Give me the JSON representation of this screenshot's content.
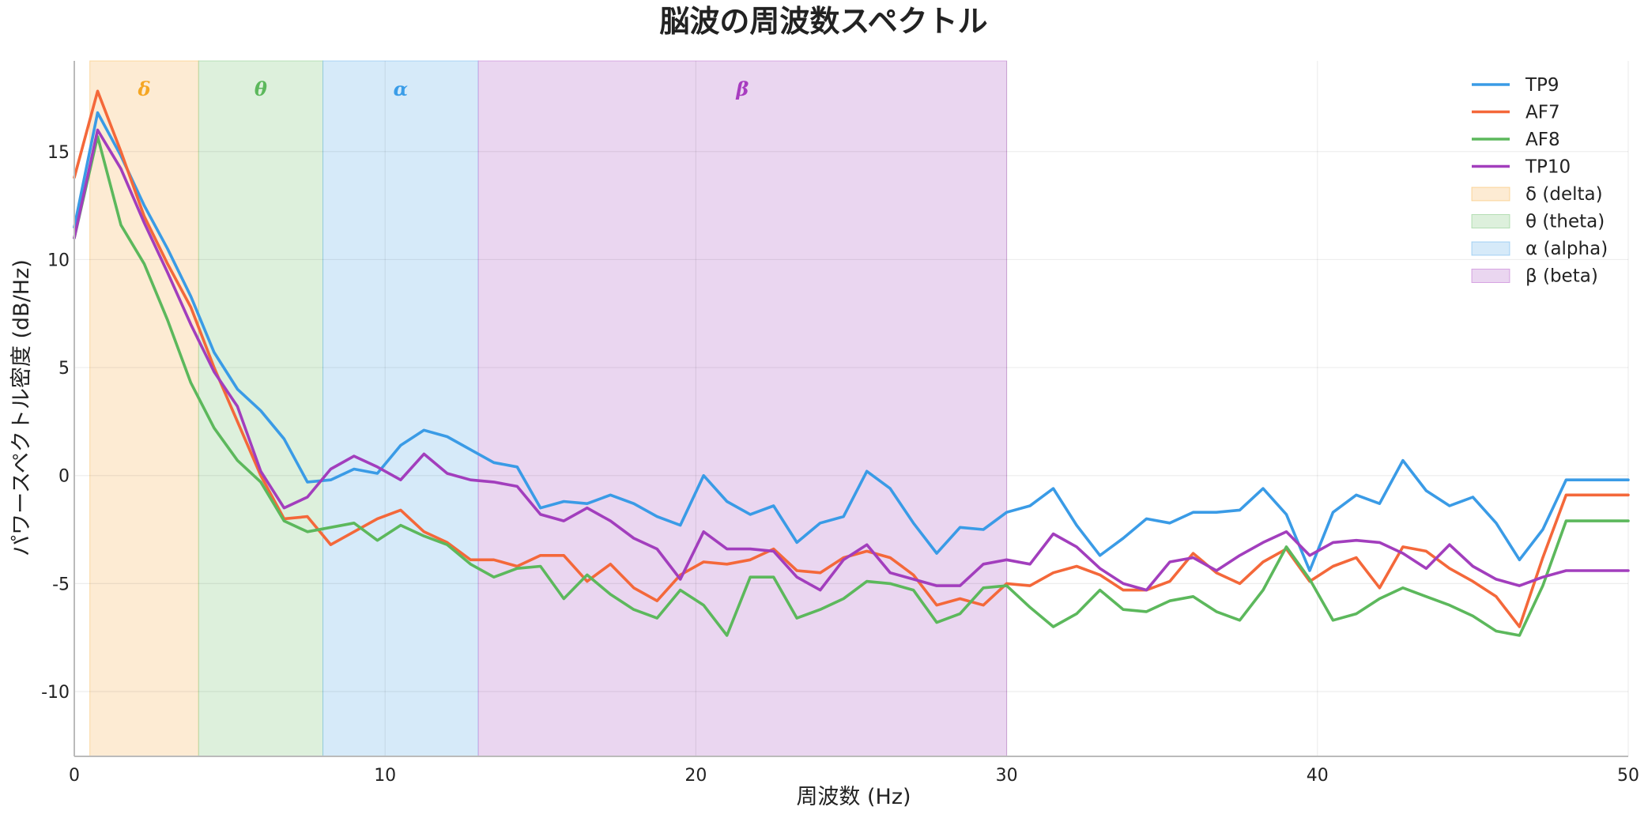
{
  "chart_data": {
    "type": "line",
    "title": "脳波の周波数スペクトル",
    "xlabel": "周波数 (Hz)",
    "ylabel": "パワースペクトル密度 (dB/Hz)",
    "xlim": [
      0,
      50
    ],
    "ylim": [
      -13,
      19.2
    ],
    "xticks": [
      0,
      10,
      20,
      30,
      40,
      50
    ],
    "yticks": [
      -10,
      -5,
      0,
      5,
      10,
      15
    ],
    "grid": true,
    "legend_position": "top-right",
    "bands": [
      {
        "symbol": "δ",
        "legend": "δ (delta)",
        "range": [
          0.5,
          4
        ],
        "color": "#f5a623",
        "fill": "#fdebd3"
      },
      {
        "symbol": "θ",
        "legend": "θ (theta)",
        "range": [
          4,
          8
        ],
        "color": "#5cb85c",
        "fill": "#ddf0dc"
      },
      {
        "symbol": "α",
        "legend": "α (alpha)",
        "range": [
          8,
          13
        ],
        "color": "#3b9de8",
        "fill": "#d6eaf9"
      },
      {
        "symbol": "β",
        "legend": "β (beta)",
        "range": [
          13,
          30
        ],
        "color": "#a83cc0",
        "fill": "#ead6f0"
      }
    ],
    "x": [
      0,
      0.75,
      1.5,
      2.25,
      3,
      3.75,
      4.5,
      5.25,
      6,
      6.75,
      7.5,
      8.25,
      9,
      9.75,
      10.5,
      11.25,
      12,
      12.75,
      13.5,
      14.25,
      15,
      15.75,
      16.5,
      17.25,
      18,
      18.75,
      19.5,
      20.25,
      21,
      21.75,
      22.5,
      23.25,
      24,
      24.75,
      25.5,
      26.25,
      27,
      27.75,
      28.5,
      29.25,
      30,
      30.75,
      31.5,
      32.25,
      33,
      33.75,
      34.5,
      35.25,
      36,
      36.75,
      37.5,
      38.25,
      39,
      39.75,
      40.5,
      41.25,
      42,
      42.75,
      43.5,
      44.25,
      45,
      45.75,
      46.5,
      47.25,
      48,
      48.75,
      49.5,
      50
    ],
    "series": [
      {
        "name": "TP9",
        "color": "#3a9be6",
        "values": [
          11.5,
          16.8,
          14.8,
          12.5,
          10.5,
          8.3,
          5.7,
          4.0,
          3.0,
          1.7,
          -0.3,
          -0.2,
          0.3,
          0.1,
          1.4,
          2.1,
          1.8,
          1.2,
          0.6,
          0.4,
          -1.5,
          -1.2,
          -1.3,
          -0.9,
          -1.3,
          -1.9,
          -2.3,
          0.0,
          -1.2,
          -1.8,
          -1.4,
          -3.1,
          -2.2,
          -1.9,
          0.2,
          -0.6,
          -2.2,
          -3.6,
          -2.4,
          -2.5,
          -1.7,
          -1.4,
          -0.6,
          -2.3,
          -3.7,
          -2.9,
          -2.0,
          -2.2,
          -1.7,
          -1.7,
          -1.6,
          -0.6,
          -1.8,
          -4.4,
          -1.7,
          -0.9,
          -1.3,
          0.7,
          -0.7,
          -1.4,
          -1.0,
          -2.2,
          -3.9,
          -2.5,
          -0.2,
          -0.2,
          -0.2,
          -0.2
        ]
      },
      {
        "name": "AF7",
        "color": "#f4683a",
        "values": [
          13.8,
          17.8,
          15.0,
          12.0,
          9.8,
          7.8,
          5.0,
          2.5,
          0.0,
          -2.0,
          -1.9,
          -3.2,
          -2.6,
          -2.0,
          -1.6,
          -2.6,
          -3.1,
          -3.9,
          -3.9,
          -4.2,
          -3.7,
          -3.7,
          -4.9,
          -4.1,
          -5.2,
          -5.8,
          -4.6,
          -4.0,
          -4.1,
          -3.9,
          -3.4,
          -4.4,
          -4.5,
          -3.8,
          -3.5,
          -3.8,
          -4.6,
          -6.0,
          -5.7,
          -6.0,
          -5.0,
          -5.1,
          -4.5,
          -4.2,
          -4.6,
          -5.3,
          -5.3,
          -4.9,
          -3.6,
          -4.5,
          -5.0,
          -4.0,
          -3.4,
          -4.9,
          -4.2,
          -3.8,
          -5.2,
          -3.3,
          -3.5,
          -4.3,
          -4.9,
          -5.6,
          -7.0,
          -3.8,
          -0.9,
          -0.9,
          -0.9,
          -0.9
        ]
      },
      {
        "name": "AF8",
        "color": "#5cb85c",
        "values": [
          11.0,
          15.7,
          11.6,
          9.8,
          7.2,
          4.3,
          2.2,
          0.7,
          -0.3,
          -2.1,
          -2.6,
          -2.4,
          -2.2,
          -3.0,
          -2.3,
          -2.8,
          -3.2,
          -4.1,
          -4.7,
          -4.3,
          -4.2,
          -5.7,
          -4.6,
          -5.5,
          -6.2,
          -6.6,
          -5.3,
          -6.0,
          -7.4,
          -4.7,
          -4.7,
          -6.6,
          -6.2,
          -5.7,
          -4.9,
          -5.0,
          -5.3,
          -6.8,
          -6.4,
          -5.2,
          -5.1,
          -6.1,
          -7.0,
          -6.4,
          -5.3,
          -6.2,
          -6.3,
          -5.8,
          -5.6,
          -6.3,
          -6.7,
          -5.3,
          -3.3,
          -4.8,
          -6.7,
          -6.4,
          -5.7,
          -5.2,
          -5.6,
          -6.0,
          -6.5,
          -7.2,
          -7.4,
          -5.1,
          -2.1,
          -2.1,
          -2.1,
          -2.1
        ]
      },
      {
        "name": "TP10",
        "color": "#a23ebd",
        "values": [
          11.0,
          16.0,
          14.2,
          11.7,
          9.4,
          7.0,
          4.8,
          3.2,
          0.2,
          -1.5,
          -1.0,
          0.3,
          0.9,
          0.4,
          -0.2,
          1.0,
          0.1,
          -0.2,
          -0.3,
          -0.5,
          -1.8,
          -2.1,
          -1.5,
          -2.1,
          -2.9,
          -3.4,
          -4.8,
          -2.6,
          -3.4,
          -3.4,
          -3.5,
          -4.7,
          -5.3,
          -3.9,
          -3.2,
          -4.5,
          -4.8,
          -5.1,
          -5.1,
          -4.1,
          -3.9,
          -4.1,
          -2.7,
          -3.3,
          -4.3,
          -5.0,
          -5.3,
          -4.0,
          -3.8,
          -4.4,
          -3.7,
          -3.1,
          -2.6,
          -3.7,
          -3.1,
          -3.0,
          -3.1,
          -3.6,
          -4.3,
          -3.2,
          -4.2,
          -4.8,
          -5.1,
          -4.7,
          -4.4,
          -4.4,
          -4.4,
          -4.4
        ]
      }
    ]
  }
}
